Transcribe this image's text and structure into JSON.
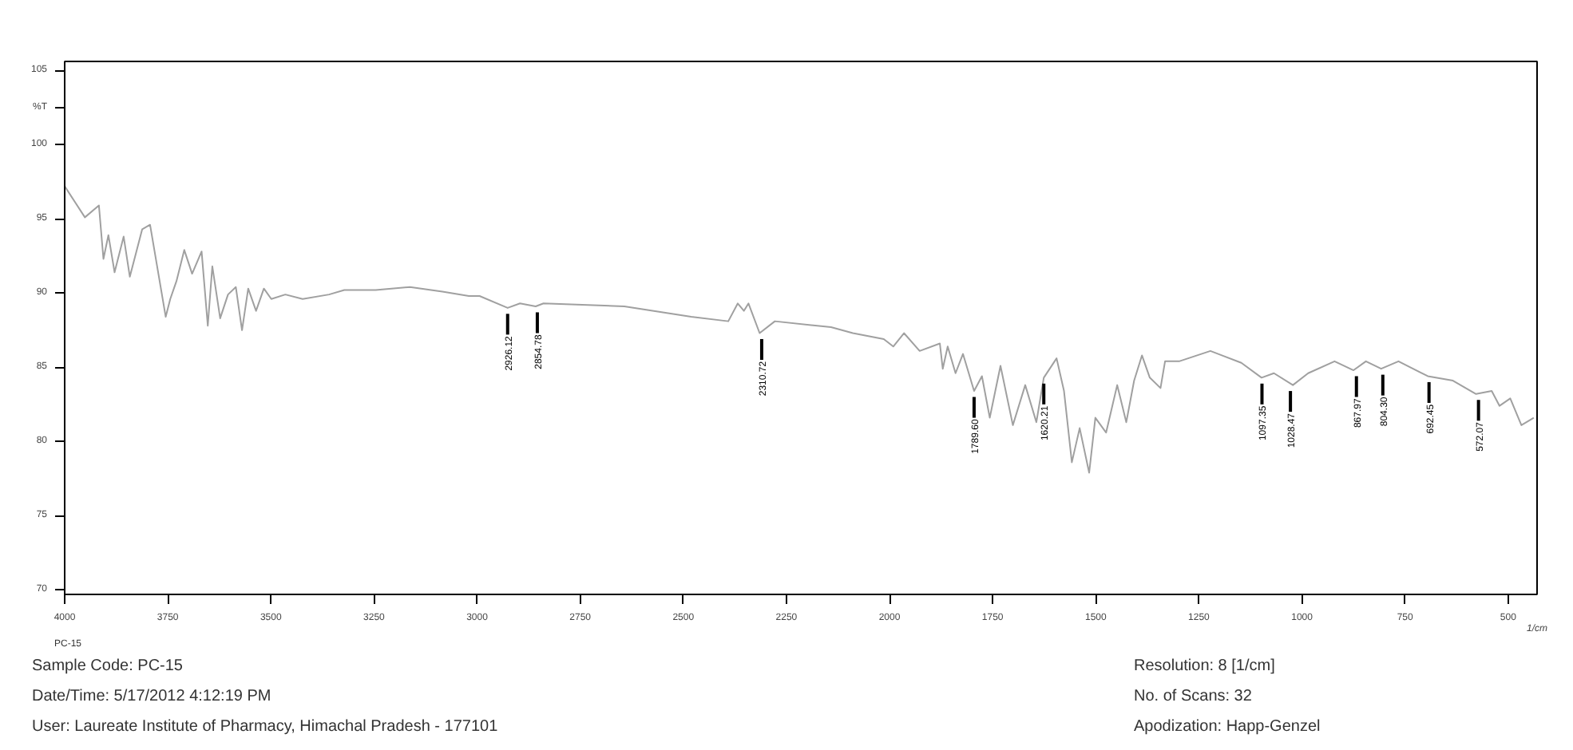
{
  "chart_data": {
    "type": "line",
    "xlabel": "1/cm",
    "xlim": [
      4000,
      430
    ],
    "ylim": [
      69.7,
      105.6
    ],
    "xticks": [
      4000,
      3750,
      3500,
      3250,
      3000,
      2750,
      2500,
      2250,
      2000,
      1750,
      1500,
      1250,
      1000,
      750,
      500
    ],
    "yticks": [
      70,
      75,
      80,
      85,
      90,
      95,
      100,
      {
        "value": 102.5,
        "label": "%T"
      },
      105
    ],
    "grid": false,
    "marker": "none",
    "line_style": "solid",
    "series": [
      {
        "color": "#a0a0a0",
        "x": [
          4000,
          3951,
          3917,
          3906,
          3894,
          3879,
          3857,
          3842,
          3812,
          3793,
          3755,
          3744,
          3729,
          3710,
          3691,
          3668,
          3653,
          3642,
          3623,
          3604,
          3585,
          3570,
          3555,
          3536,
          3517,
          3499,
          3465,
          3423,
          3359,
          3322,
          3246,
          3163,
          3084,
          3020,
          2994,
          2926,
          2896,
          2858,
          2839,
          2643,
          2481,
          2391,
          2368,
          2353,
          2342,
          2315,
          2278,
          2142,
          2089,
          2014,
          1991,
          1965,
          1927,
          1878,
          1871,
          1859,
          1840,
          1822,
          1795,
          1776,
          1757,
          1731,
          1701,
          1671,
          1644,
          1626,
          1595,
          1577,
          1558,
          1539,
          1516,
          1501,
          1475,
          1448,
          1426,
          1407,
          1388,
          1369,
          1343,
          1332,
          1298,
          1222,
          1147,
          1098,
          1068,
          1022,
          985,
          921,
          875,
          845,
          808,
          766,
          695,
          634,
          578,
          540,
          521,
          495,
          468,
          438
        ],
        "values": [
          97.2,
          95.1,
          95.9,
          92.3,
          93.9,
          91.4,
          93.8,
          91.1,
          94.3,
          94.6,
          88.4,
          89.6,
          90.8,
          92.9,
          91.3,
          92.8,
          87.8,
          91.8,
          88.3,
          89.9,
          90.4,
          87.5,
          90.3,
          88.8,
          90.3,
          89.6,
          89.9,
          89.6,
          89.9,
          90.2,
          90.2,
          90.4,
          90.1,
          89.8,
          89.8,
          89.0,
          89.3,
          89.1,
          89.3,
          89.1,
          88.4,
          88.1,
          89.3,
          88.8,
          89.3,
          87.3,
          88.1,
          87.7,
          87.3,
          86.9,
          86.4,
          87.3,
          86.1,
          86.6,
          84.9,
          86.4,
          84.6,
          85.9,
          83.4,
          84.4,
          81.6,
          85.1,
          81.1,
          83.8,
          81.3,
          84.3,
          85.6,
          83.4,
          78.6,
          80.9,
          77.9,
          81.6,
          80.6,
          83.8,
          81.3,
          84.1,
          85.8,
          84.3,
          83.6,
          85.4,
          85.4,
          86.1,
          85.3,
          84.3,
          84.6,
          83.8,
          84.6,
          85.4,
          84.8,
          85.4,
          84.9,
          85.4,
          84.4,
          84.1,
          83.2,
          83.4,
          82.4,
          82.9,
          81.1,
          81.6
        ]
      }
    ],
    "annotations": [
      {
        "text": "2926.12",
        "x": 2926,
        "y": 89.0
      },
      {
        "text": "2854.78",
        "x": 2854,
        "y": 89.1
      },
      {
        "text": "2310.72",
        "x": 2310,
        "y": 87.3
      },
      {
        "text": "1789.60",
        "x": 1795,
        "y": 83.4
      },
      {
        "text": "1620.21",
        "x": 1626,
        "y": 84.3
      },
      {
        "text": "1097.35",
        "x": 1097,
        "y": 84.3
      },
      {
        "text": "1028.47",
        "x": 1028,
        "y": 83.8
      },
      {
        "text": "867.97",
        "x": 868,
        "y": 84.8
      },
      {
        "text": "804.30",
        "x": 804,
        "y": 84.9
      },
      {
        "text": "692.45",
        "x": 692,
        "y": 84.4
      },
      {
        "text": "572.07",
        "x": 572,
        "y": 83.2
      },
      "PC-15",
      "Sample Code: PC-15",
      "Date/Time: 5/17/2012 4:12:19 PM",
      "User: Laureate Institute of Pharmacy, Himachal Pradesh - 177101",
      "Resolution:   8 [1/cm]",
      "No. of Scans: 32",
      "Apodization:   Happ-Genzel"
    ]
  }
}
